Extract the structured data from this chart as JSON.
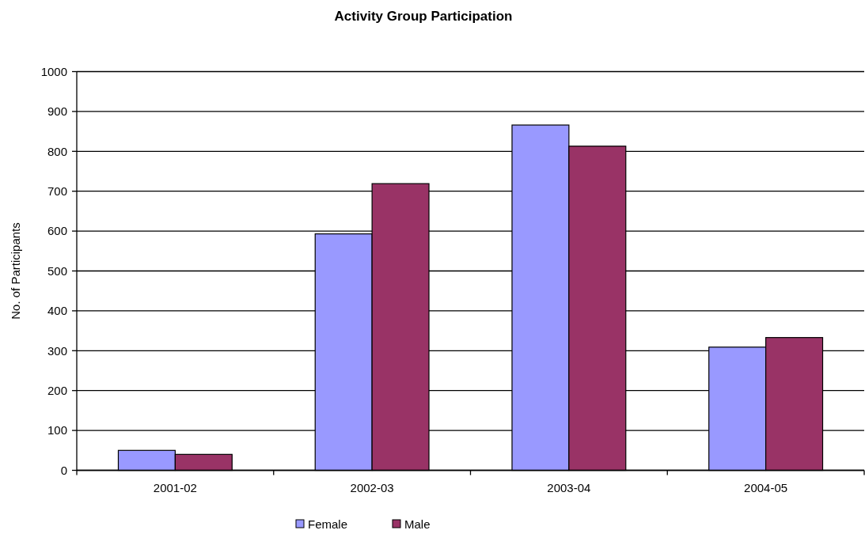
{
  "chart_data": {
    "type": "bar",
    "title": "Activity Group Participation",
    "ylabel": "No. of Participants",
    "categories": [
      "2001-02",
      "2002-03",
      "2003-04",
      "2004-05"
    ],
    "series": [
      {
        "name": "Female",
        "color": "#9999ff",
        "values": [
          50,
          593,
          866,
          309
        ]
      },
      {
        "name": "Male",
        "color": "#993366",
        "values": [
          40,
          719,
          813,
          333
        ]
      }
    ],
    "ylim": [
      0,
      1000
    ],
    "yticks": [
      0,
      100,
      200,
      300,
      400,
      500,
      600,
      700,
      800,
      900,
      1000
    ],
    "grid": "y",
    "legend": "bottom"
  }
}
